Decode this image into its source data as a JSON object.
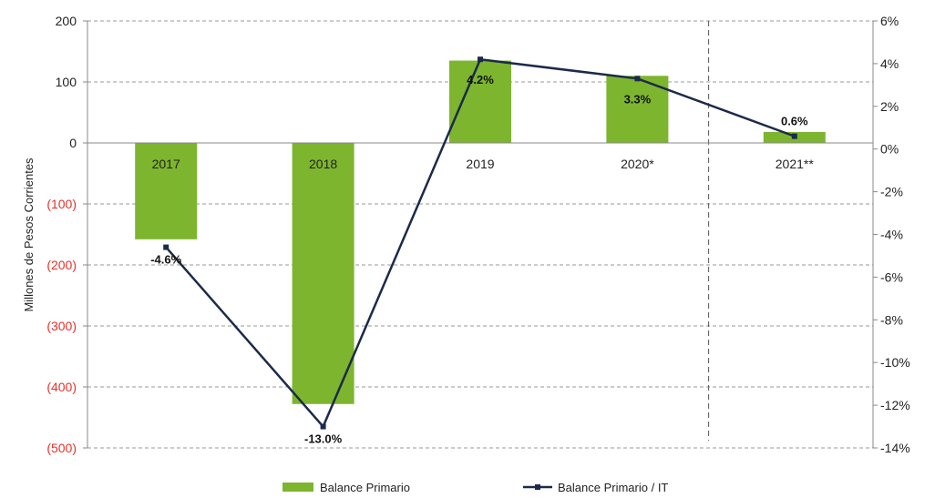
{
  "chart_data": {
    "type": "bar",
    "categories": [
      "2017",
      "2018",
      "2019",
      "2020*",
      "2021**"
    ],
    "ylabel": "Millones de Pesos Corrientes",
    "ylim": [
      -500,
      200
    ],
    "y_ticks": [
      "200",
      "100",
      "0",
      "(100)",
      "(200)",
      "(300)",
      "(400)",
      "(500)"
    ],
    "y2lim": [
      -14,
      6
    ],
    "y2_ticks": [
      "6%",
      "4%",
      "2%",
      "0%",
      "-2%",
      "-4%",
      "-6%",
      "-8%",
      "-10%",
      "-12%",
      "-14%"
    ],
    "grid": true,
    "legend_position": "bottom",
    "series": [
      {
        "name": "Balance Primario",
        "type": "bar",
        "axis": "left",
        "color": "#7db52f",
        "values": [
          -158,
          -428,
          135,
          110,
          18
        ]
      },
      {
        "name": "Balance Primario / IT",
        "type": "line",
        "axis": "right",
        "color": "#1c2a4a",
        "values": [
          -4.6,
          -13.0,
          4.2,
          3.3,
          0.6
        ],
        "labels": [
          "-4.6%",
          "-13.0%",
          "4.2%",
          "3.3%",
          "0.6%"
        ]
      }
    ],
    "negative_tick_color": "#e8312a"
  }
}
